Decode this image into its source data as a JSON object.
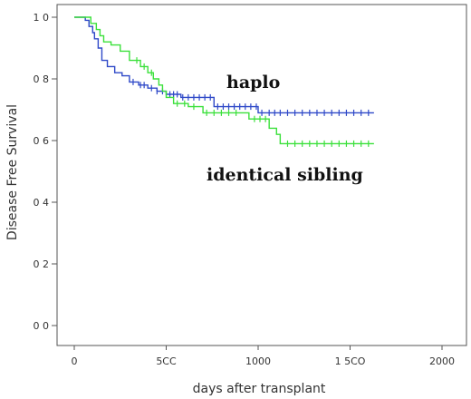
{
  "chart_data": {
    "type": "line",
    "subtype": "kaplan-meier survival curve",
    "title": "",
    "xlabel": "days after transplant",
    "ylabel": "Disease Free Survival",
    "xlim": [
      0,
      2000
    ],
    "ylim": [
      0.0,
      1.0
    ],
    "x_ticks": [
      0,
      500,
      1000,
      1500,
      2000
    ],
    "x_tick_labels": [
      "0",
      "5CC",
      "1000",
      "1 5CO",
      "2000"
    ],
    "y_ticks": [
      0.0,
      0.2,
      0.4,
      0.6,
      0.8,
      1.0
    ],
    "y_tick_labels": [
      "0 0",
      "0 2",
      "0 4",
      "0 6",
      "0 8",
      "1 0"
    ],
    "grid": false,
    "legend": "none",
    "annotations": [
      {
        "text": "haplo",
        "series": "haplo"
      },
      {
        "text": "identical sibling",
        "series": "identical sibling"
      }
    ],
    "series": [
      {
        "name": "haplo",
        "color": "#2f49c8",
        "steps": [
          [
            0,
            1.0
          ],
          [
            60,
            0.99
          ],
          [
            80,
            0.97
          ],
          [
            100,
            0.95
          ],
          [
            110,
            0.93
          ],
          [
            130,
            0.9
          ],
          [
            150,
            0.86
          ],
          [
            180,
            0.84
          ],
          [
            220,
            0.82
          ],
          [
            260,
            0.81
          ],
          [
            300,
            0.79
          ],
          [
            350,
            0.78
          ],
          [
            400,
            0.77
          ],
          [
            450,
            0.76
          ],
          [
            500,
            0.75
          ],
          [
            580,
            0.74
          ],
          [
            760,
            0.71
          ],
          [
            1000,
            0.69
          ],
          [
            1630,
            0.69
          ]
        ],
        "censor_x": [
          320,
          360,
          380,
          420,
          450,
          480,
          520,
          540,
          560,
          590,
          620,
          650,
          680,
          710,
          740,
          780,
          810,
          840,
          870,
          900,
          930,
          960,
          990,
          1020,
          1060,
          1090,
          1120,
          1160,
          1200,
          1240,
          1280,
          1320,
          1360,
          1400,
          1440,
          1480,
          1520,
          1560,
          1600
        ]
      },
      {
        "name": "identical sibling",
        "color": "#3be03b",
        "steps": [
          [
            0,
            1.0
          ],
          [
            90,
            0.98
          ],
          [
            120,
            0.96
          ],
          [
            140,
            0.94
          ],
          [
            160,
            0.92
          ],
          [
            200,
            0.91
          ],
          [
            250,
            0.89
          ],
          [
            300,
            0.86
          ],
          [
            360,
            0.84
          ],
          [
            400,
            0.82
          ],
          [
            430,
            0.8
          ],
          [
            460,
            0.78
          ],
          [
            480,
            0.76
          ],
          [
            500,
            0.74
          ],
          [
            540,
            0.72
          ],
          [
            620,
            0.71
          ],
          [
            700,
            0.69
          ],
          [
            950,
            0.67
          ],
          [
            1060,
            0.64
          ],
          [
            1100,
            0.62
          ],
          [
            1120,
            0.59
          ],
          [
            1630,
            0.59
          ]
        ],
        "censor_x": [
          340,
          380,
          420,
          560,
          600,
          650,
          720,
          760,
          800,
          840,
          880,
          980,
          1010,
          1040,
          1160,
          1200,
          1240,
          1280,
          1320,
          1360,
          1400,
          1440,
          1480,
          1520,
          1560,
          1600
        ]
      }
    ]
  }
}
